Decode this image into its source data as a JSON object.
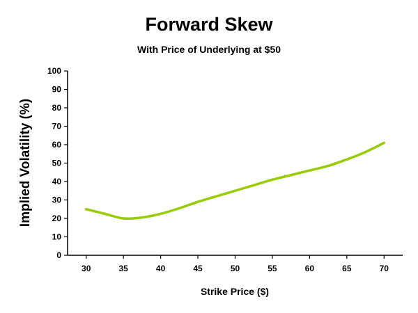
{
  "chart_data": {
    "type": "line",
    "title": "Forward Skew",
    "subtitle": "With Price of Underlying at $50",
    "xlabel": "Strike Price ($)",
    "ylabel": "Implied Volatility (%)",
    "xlim": [
      27.5,
      72.5
    ],
    "ylim": [
      0,
      100
    ],
    "x_ticks": [
      "30",
      "35",
      "40",
      "45",
      "50",
      "55",
      "60",
      "65",
      "70"
    ],
    "y_ticks": [
      "0",
      "10",
      "20",
      "30",
      "40",
      "50",
      "60",
      "70",
      "80",
      "90",
      "100"
    ],
    "grid": false,
    "legend": "none",
    "series": [
      {
        "color": "#99cc00",
        "x": [
          30,
          32.5,
          35,
          37.5,
          40,
          42.5,
          45,
          47.5,
          50,
          52.5,
          55,
          57.5,
          60,
          62.5,
          65,
          67.5,
          70
        ],
        "y": [
          25,
          22.5,
          20,
          20.5,
          22.5,
          25.5,
          29,
          32,
          35,
          38,
          41,
          43.5,
          46,
          48.5,
          52,
          56,
          61
        ]
      }
    ]
  }
}
